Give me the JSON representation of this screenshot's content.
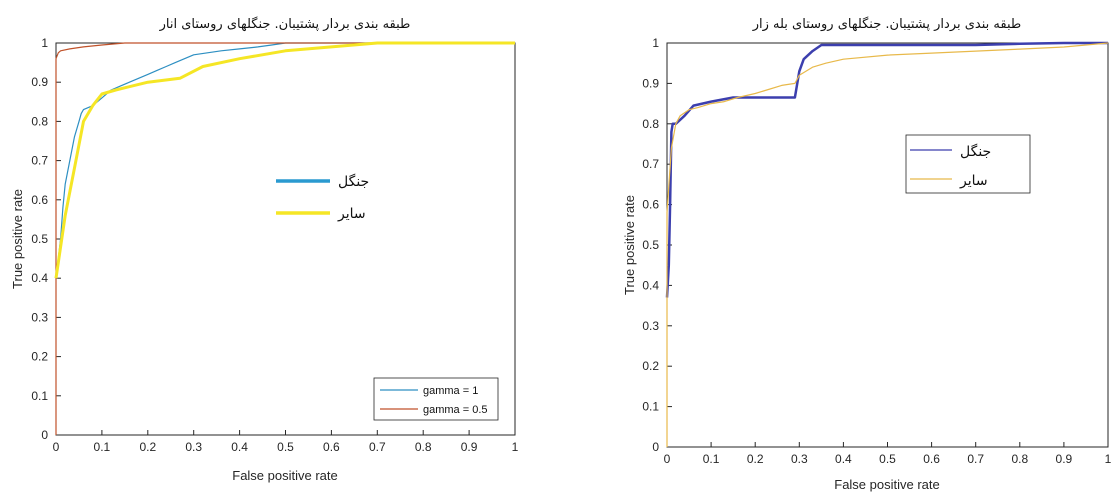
{
  "chart_data": [
    {
      "type": "line",
      "title": "طبقه بندی بردار پشتیبان. جنگلهای روستای انار",
      "xlabel": "False positive rate",
      "ylabel": "True positive rate",
      "xlim": [
        0,
        1
      ],
      "ylim": [
        0,
        1
      ],
      "xticks": [
        "0",
        "0.1",
        "0.2",
        "0.3",
        "0.4",
        "0.5",
        "0.6",
        "0.7",
        "0.8",
        "0.9",
        "1"
      ],
      "yticks": [
        "0",
        "0.1",
        "0.2",
        "0.3",
        "0.4",
        "0.5",
        "0.6",
        "0.7",
        "0.8",
        "0.9",
        "1"
      ],
      "series": [
        {
          "name": "gamma = 1",
          "color": "#2d8fc2",
          "width": 1.2,
          "x": [
            0,
            0.005,
            0.01,
            0.015,
            0.02,
            0.03,
            0.04,
            0.05,
            0.055,
            0.06,
            0.08,
            0.1,
            0.12,
            0.14,
            0.16,
            0.18,
            0.2,
            0.22,
            0.24,
            0.26,
            0.28,
            0.3,
            0.33,
            0.36,
            0.4,
            0.44,
            0.47,
            0.5,
            1
          ],
          "y": [
            0.41,
            0.45,
            0.5,
            0.58,
            0.64,
            0.7,
            0.76,
            0.8,
            0.82,
            0.83,
            0.84,
            0.86,
            0.88,
            0.89,
            0.9,
            0.91,
            0.92,
            0.93,
            0.94,
            0.95,
            0.96,
            0.97,
            0.975,
            0.98,
            0.985,
            0.99,
            0.995,
            1,
            1
          ]
        },
        {
          "name": "gamma = 0.5",
          "color": "#c0522a",
          "width": 1.2,
          "x": [
            0,
            0,
            0.005,
            0.01,
            0.03,
            0.06,
            0.1,
            0.15,
            1
          ],
          "y": [
            0,
            0.96,
            0.975,
            0.98,
            0.985,
            0.99,
            0.995,
            1,
            1
          ]
        },
        {
          "name": "جنگل",
          "color": "#2a9ad0",
          "width": 3,
          "x": [],
          "y": []
        },
        {
          "name": "سایر",
          "color": "#f5e625",
          "width": 3,
          "x": [
            0,
            0.02,
            0.04,
            0.06,
            0.08,
            0.1,
            0.13,
            0.2,
            0.27,
            0.32,
            0.4,
            0.5,
            0.6,
            0.7,
            0.8,
            1
          ],
          "y": [
            0.4,
            0.56,
            0.68,
            0.8,
            0.84,
            0.87,
            0.88,
            0.9,
            0.91,
            0.94,
            0.96,
            0.98,
            0.99,
            1,
            1,
            1
          ]
        }
      ],
      "legends": [
        {
          "placement": "center",
          "entries": [
            "جنگل",
            "سایر"
          ]
        },
        {
          "placement": "bottom-right",
          "entries": [
            "gamma = 1",
            "gamma = 0.5"
          ]
        }
      ]
    },
    {
      "type": "line",
      "title": "طبقه بندی بردار پشتیبان. جنگلهای روستای بله زار",
      "xlabel": "False positive rate",
      "ylabel": "True positive rate",
      "xlim": [
        0,
        1
      ],
      "ylim": [
        0,
        1
      ],
      "xticks": [
        "0",
        "0.1",
        "0.2",
        "0.3",
        "0.4",
        "0.5",
        "0.6",
        "0.7",
        "0.8",
        "0.9",
        "1"
      ],
      "yticks": [
        "0",
        "0.1",
        "0.2",
        "0.3",
        "0.4",
        "0.5",
        "0.6",
        "0.7",
        "0.8",
        "0.9",
        "1"
      ],
      "series": [
        {
          "name": "جنگل",
          "color": "#3c3fae",
          "width": 2.5,
          "x": [
            0,
            0.004,
            0.007,
            0.01,
            0.013,
            0.02,
            0.04,
            0.06,
            0.1,
            0.15,
            0.2,
            0.25,
            0.29,
            0.3,
            0.31,
            0.33,
            0.35,
            0.4,
            0.5,
            0.6,
            0.7,
            0.8,
            0.9,
            0.95,
            1
          ],
          "y": [
            0.37,
            0.45,
            0.6,
            0.78,
            0.8,
            0.8,
            0.82,
            0.845,
            0.855,
            0.865,
            0.865,
            0.865,
            0.865,
            0.93,
            0.96,
            0.98,
            0.995,
            0.995,
            0.995,
            0.995,
            0.995,
            0.998,
            1,
            1,
            1
          ]
        },
        {
          "name": "سایر",
          "color": "#e8b94a",
          "width": 1.2,
          "x": [
            0,
            0,
            0.01,
            0.02,
            0.03,
            0.05,
            0.07,
            0.1,
            0.13,
            0.16,
            0.2,
            0.23,
            0.26,
            0.29,
            0.3,
            0.33,
            0.36,
            0.4,
            0.5,
            0.6,
            0.7,
            0.8,
            0.9,
            1
          ],
          "y": [
            0,
            0.58,
            0.74,
            0.8,
            0.82,
            0.835,
            0.84,
            0.85,
            0.855,
            0.865,
            0.875,
            0.885,
            0.895,
            0.9,
            0.92,
            0.94,
            0.95,
            0.96,
            0.97,
            0.975,
            0.98,
            0.985,
            0.99,
            1
          ]
        }
      ],
      "legends": [
        {
          "placement": "upper-right",
          "entries": [
            "جنگل",
            "سایر"
          ]
        }
      ]
    }
  ]
}
